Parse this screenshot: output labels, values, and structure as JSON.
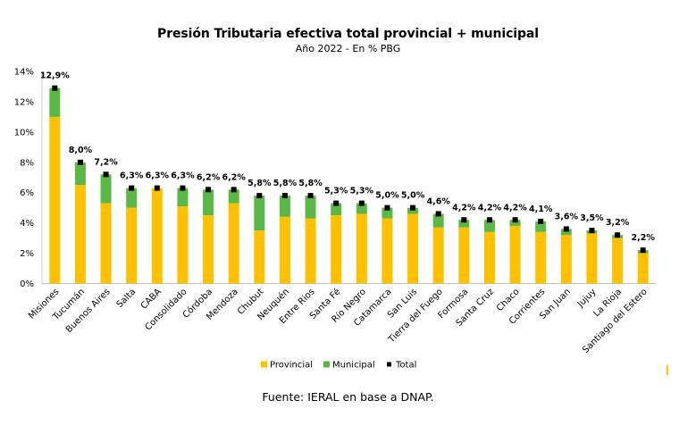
{
  "chart_data": {
    "type": "bar",
    "stacked": true,
    "title": "Presión Tributaria efectiva total provincial + municipal",
    "subtitle": "Año 2022 - En % PBG",
    "categories": [
      "Misiones",
      "Tucumán",
      "Buenos Aires",
      "Salta",
      "CABA",
      "Consolidado",
      "Córdoba",
      "Mendoza",
      "Chubut",
      "Neuquén",
      "Entre Rios",
      "Santa Fé",
      "Río Negro",
      "Catamarca",
      "San Luis",
      "Tierra del Fuego",
      "Formosa",
      "Santa Cruz",
      "Chaco",
      "Corrientes",
      "San Juan",
      "Jujuy",
      "La Rioja",
      "Santiago del Estero"
    ],
    "series": [
      {
        "name": "Provincial",
        "color": "#FFC000",
        "values": [
          11.0,
          6.5,
          5.3,
          5.0,
          6.3,
          5.1,
          4.5,
          5.3,
          3.5,
          4.4,
          4.3,
          4.5,
          4.6,
          4.3,
          4.6,
          3.7,
          3.7,
          3.4,
          3.8,
          3.4,
          3.2,
          3.3,
          3.0,
          2.0
        ]
      },
      {
        "name": "Municipal",
        "color": "#5BB847",
        "values": [
          1.9,
          1.5,
          1.9,
          1.3,
          0.0,
          1.2,
          1.7,
          0.9,
          2.3,
          1.4,
          1.5,
          0.8,
          0.7,
          0.7,
          0.4,
          0.9,
          0.5,
          0.8,
          0.4,
          0.7,
          0.4,
          0.2,
          0.2,
          0.2
        ]
      },
      {
        "name": "Total",
        "color": "#000000",
        "marker": "square",
        "values": [
          12.9,
          8.0,
          7.2,
          6.3,
          6.3,
          6.3,
          6.2,
          6.2,
          5.8,
          5.8,
          5.8,
          5.3,
          5.3,
          5.0,
          5.0,
          4.6,
          4.2,
          4.2,
          4.2,
          4.1,
          3.6,
          3.5,
          3.2,
          2.2
        ]
      }
    ],
    "data_labels": [
      "12,9%",
      "8,0%",
      "7,2%",
      "6,3%",
      "6,3%",
      "6,3%",
      "6,2%",
      "6,2%",
      "5,8%",
      "5,8%",
      "5,8%",
      "5,3%",
      "5,3%",
      "5,0%",
      "5,0%",
      "4,6%",
      "4,2%",
      "4,2%",
      "4,2%",
      "4,1%",
      "3,6%",
      "3,5%",
      "3,2%",
      "2,2%"
    ],
    "ylim": [
      0,
      14
    ],
    "yticks": [
      "0%",
      "2%",
      "4%",
      "6%",
      "8%",
      "10%",
      "12%",
      "14%"
    ],
    "grid": false,
    "legend_position": "bottom"
  },
  "source_note": "Fuente: IERAL en base a DNAP."
}
